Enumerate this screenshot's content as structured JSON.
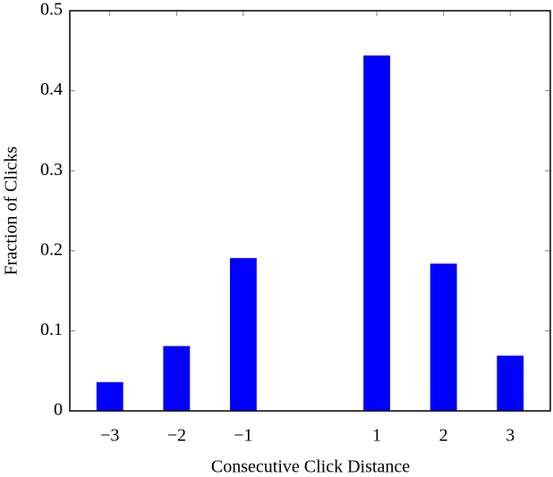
{
  "chart_data": {
    "type": "bar",
    "x_label": "Consecutive Click Distance",
    "y_label": "Fraction of Clicks",
    "x": [
      -3,
      -2,
      -1,
      1,
      2,
      3
    ],
    "values": [
      0.036,
      0.081,
      0.191,
      0.444,
      0.184,
      0.069
    ],
    "color": "#0000ff",
    "xlim": [
      -3.6,
      3.6
    ],
    "xticks": [
      {
        "value": -3,
        "label": "−3"
      },
      {
        "value": -2,
        "label": "−2"
      },
      {
        "value": -1,
        "label": "−1"
      },
      1,
      2,
      3
    ],
    "ylim": [
      0,
      0.5
    ],
    "yticks": [
      0,
      0.1,
      0.2,
      0.3,
      0.4,
      0.5
    ],
    "grid": false
  }
}
